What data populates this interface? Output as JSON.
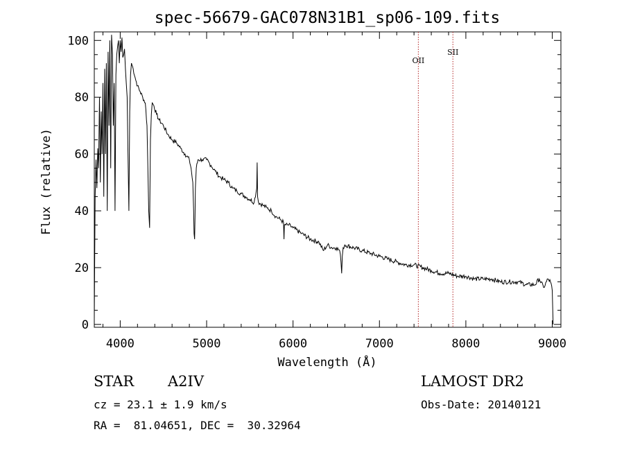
{
  "chart_data": {
    "type": "line",
    "title": "spec-56679-GAC078N31B1_sp06-109.fits",
    "xlabel": "Wavelength (Å)",
    "ylabel": "Flux (relative)",
    "xlim": [
      3700,
      9100
    ],
    "ylim": [
      -1,
      103
    ],
    "x_ticks": [
      4000,
      5000,
      6000,
      7000,
      8000,
      9000
    ],
    "y_ticks": [
      0,
      20,
      40,
      60,
      80,
      100
    ],
    "x_tick_labels": [
      "4000",
      "5000",
      "6000",
      "7000",
      "8000",
      "9000"
    ],
    "y_tick_labels": [
      "0",
      "20",
      "40",
      "60",
      "80",
      "100"
    ],
    "grid": false,
    "series": [
      {
        "name": "flux",
        "x": [
          3700,
          3710,
          3720,
          3730,
          3740,
          3750,
          3760,
          3770,
          3780,
          3790,
          3800,
          3810,
          3820,
          3830,
          3840,
          3850,
          3860,
          3870,
          3880,
          3890,
          3900,
          3910,
          3920,
          3930,
          3940,
          3950,
          3960,
          3970,
          3980,
          3990,
          4000,
          4010,
          4020,
          4030,
          4040,
          4050,
          4060,
          4070,
          4080,
          4090,
          4100,
          4110,
          4120,
          4130,
          4150,
          4180,
          4200,
          4230,
          4260,
          4290,
          4310,
          4320,
          4330,
          4340,
          4345,
          4350,
          4360,
          4370,
          4390,
          4420,
          4450,
          4500,
          4550,
          4600,
          4650,
          4700,
          4750,
          4800,
          4820,
          4840,
          4850,
          4855,
          4861,
          4866,
          4870,
          4880,
          4900,
          4950,
          5000,
          5050,
          5100,
          5150,
          5200,
          5250,
          5300,
          5350,
          5400,
          5450,
          5500,
          5550,
          5580,
          5585,
          5590,
          5600,
          5650,
          5700,
          5750,
          5800,
          5850,
          5890,
          5895,
          5900,
          5950,
          6000,
          6100,
          6200,
          6300,
          6350,
          6400,
          6450,
          6500,
          6540,
          6555,
          6563,
          6570,
          6580,
          6600,
          6700,
          6800,
          6900,
          7000,
          7100,
          7200,
          7300,
          7400,
          7500,
          7600,
          7700,
          7800,
          7900,
          8000,
          8100,
          8200,
          8300,
          8400,
          8500,
          8600,
          8700,
          8800,
          8850,
          8900,
          8950,
          8980,
          9000,
          9010
        ],
        "y": [
          2,
          45,
          58,
          48,
          62,
          55,
          80,
          50,
          75,
          60,
          85,
          45,
          90,
          60,
          92,
          40,
          96,
          70,
          100,
          55,
          102,
          95,
          70,
          85,
          40,
          88,
          95,
          98,
          100,
          92,
          100,
          96,
          101,
          94,
          95,
          97,
          90,
          85,
          80,
          60,
          40,
          75,
          88,
          92,
          90,
          86,
          84,
          82,
          80,
          78,
          70,
          55,
          40,
          34,
          50,
          65,
          74,
          78,
          77,
          74,
          72,
          70,
          67,
          65,
          64,
          62,
          60,
          58,
          55,
          50,
          40,
          32,
          30,
          38,
          48,
          55,
          58,
          58,
          58,
          56,
          54,
          52,
          51,
          50,
          48,
          47,
          46,
          45,
          44,
          43,
          48,
          57,
          45,
          43,
          42,
          41,
          40,
          38,
          37,
          36,
          30,
          35,
          35,
          34,
          32,
          30,
          29,
          26,
          28,
          27,
          27,
          26,
          22,
          18,
          24,
          27,
          28,
          27,
          26,
          25,
          24,
          23,
          22,
          21,
          21,
          20,
          19,
          18,
          18,
          17,
          17,
          16,
          16,
          16,
          15,
          15,
          15,
          14,
          14,
          16,
          13,
          16,
          15,
          12,
          0
        ]
      }
    ],
    "vlines": [
      {
        "x": 7450,
        "label": "OII",
        "label_y": 92,
        "color": "#b22222"
      },
      {
        "x": 7850,
        "label": "SII",
        "label_y": 95,
        "color": "#b22222"
      }
    ]
  },
  "info": {
    "object_class": "STAR",
    "subclass": "A2IV",
    "survey": "LAMOST DR2",
    "redshift": "cz = 23.1 ± 1.9 km/s",
    "obs_date": "Obs-Date: 20140121",
    "coords": "RA =  81.04651, DEC =  30.32964"
  }
}
